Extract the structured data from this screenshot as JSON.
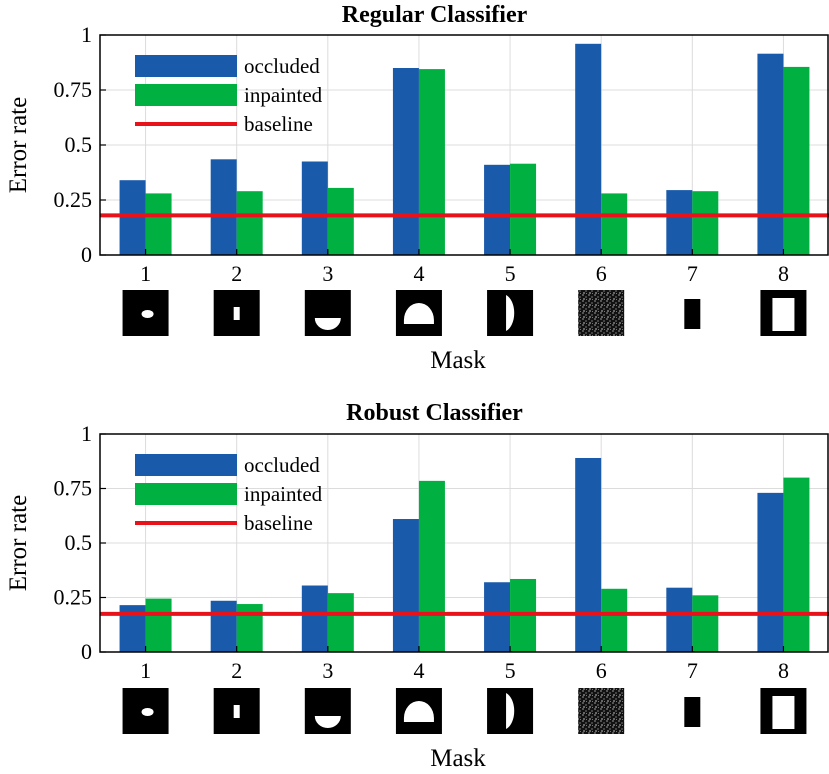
{
  "chart_data": [
    {
      "type": "bar",
      "title": "Regular Classifier",
      "xlabel": "Mask",
      "ylabel": "Error rate",
      "ylim": [
        0,
        1
      ],
      "yticks": [
        "0",
        "0.25",
        "0.5",
        "0.75",
        "1"
      ],
      "grid": true,
      "legend_position": "top-left",
      "categories": [
        "1",
        "2",
        "3",
        "4",
        "5",
        "6",
        "7",
        "8"
      ],
      "series": [
        {
          "name": "occluded",
          "color": "#1a5aab",
          "values": [
            0.34,
            0.435,
            0.425,
            0.85,
            0.41,
            0.96,
            0.295,
            0.915
          ]
        },
        {
          "name": "inpainted",
          "color": "#00b141",
          "values": [
            0.28,
            0.29,
            0.305,
            0.845,
            0.415,
            0.28,
            0.29,
            0.855
          ]
        }
      ],
      "baseline": {
        "name": "baseline",
        "color": "#e8131a",
        "value": 0.18
      }
    },
    {
      "type": "bar",
      "title": "Robust Classifier",
      "xlabel": "Mask",
      "ylabel": "Error rate",
      "ylim": [
        0,
        1
      ],
      "yticks": [
        "0",
        "0.25",
        "0.5",
        "0.75",
        "1"
      ],
      "grid": true,
      "legend_position": "top-left",
      "categories": [
        "1",
        "2",
        "3",
        "4",
        "5",
        "6",
        "7",
        "8"
      ],
      "series": [
        {
          "name": "occluded",
          "color": "#1a5aab",
          "values": [
            0.215,
            0.235,
            0.305,
            0.61,
            0.32,
            0.89,
            0.295,
            0.73
          ]
        },
        {
          "name": "inpainted",
          "color": "#00b141",
          "values": [
            0.245,
            0.22,
            0.27,
            0.785,
            0.335,
            0.29,
            0.26,
            0.8
          ]
        }
      ],
      "baseline": {
        "name": "baseline",
        "color": "#e8131a",
        "value": 0.175
      }
    }
  ]
}
